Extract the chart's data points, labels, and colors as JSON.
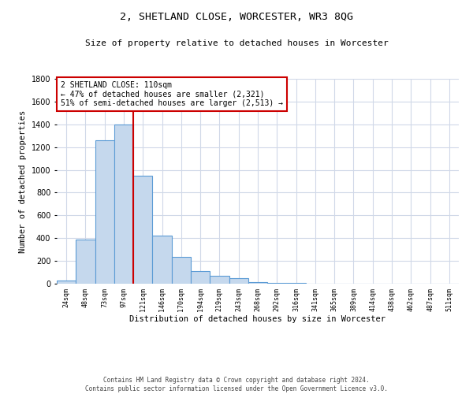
{
  "title": "2, SHETLAND CLOSE, WORCESTER, WR3 8QG",
  "subtitle": "Size of property relative to detached houses in Worcester",
  "xlabel": "Distribution of detached houses by size in Worcester",
  "ylabel": "Number of detached properties",
  "bin_labels": [
    "24sqm",
    "48sqm",
    "73sqm",
    "97sqm",
    "121sqm",
    "146sqm",
    "170sqm",
    "194sqm",
    "219sqm",
    "243sqm",
    "268sqm",
    "292sqm",
    "316sqm",
    "341sqm",
    "365sqm",
    "389sqm",
    "414sqm",
    "438sqm",
    "462sqm",
    "487sqm",
    "511sqm"
  ],
  "bar_values": [
    25,
    390,
    1260,
    1400,
    950,
    425,
    235,
    110,
    70,
    50,
    15,
    10,
    5,
    3,
    2,
    1,
    1,
    1,
    0,
    0,
    0
  ],
  "bar_color": "#c5d8ed",
  "bar_edge_color": "#5b9bd5",
  "vline_x_index": 4,
  "vline_color": "#cc0000",
  "annotation_title": "2 SHETLAND CLOSE: 110sqm",
  "annotation_line1": "← 47% of detached houses are smaller (2,321)",
  "annotation_line2": "51% of semi-detached houses are larger (2,513) →",
  "annotation_box_color": "#cc0000",
  "ylim": [
    0,
    1800
  ],
  "yticks": [
    0,
    200,
    400,
    600,
    800,
    1000,
    1200,
    1400,
    1600,
    1800
  ],
  "footer_line1": "Contains HM Land Registry data © Crown copyright and database right 2024.",
  "footer_line2": "Contains public sector information licensed under the Open Government Licence v3.0.",
  "background_color": "#ffffff",
  "grid_color": "#d0d8e8"
}
